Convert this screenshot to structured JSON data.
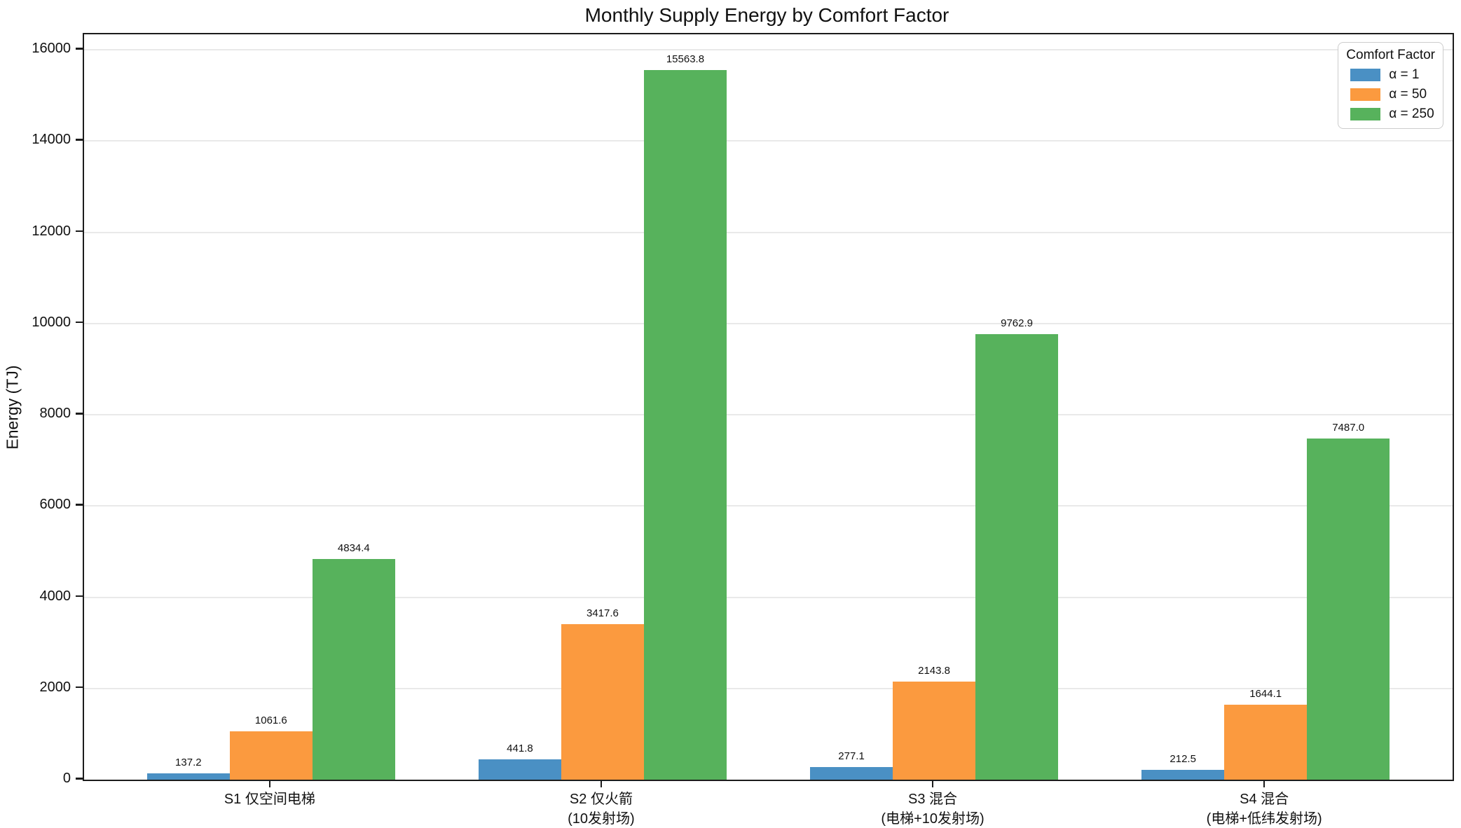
{
  "title": "Monthly Supply Energy by Comfort Factor",
  "ylabel": "Energy (TJ)",
  "legend": {
    "title": "Comfort Factor",
    "entries": [
      {
        "label": "α = 1",
        "color": "#4A90C4"
      },
      {
        "label": "α = 50",
        "color": "#FB9A3F"
      },
      {
        "label": "α = 250",
        "color": "#57B25C"
      }
    ]
  },
  "chart_data": {
    "type": "bar",
    "title": "Monthly Supply Energy by Comfort Factor",
    "xlabel": "",
    "ylabel": "Energy (TJ)",
    "categories": [
      "S1 仅空间电梯",
      "S2 仅火箭\n(10发射场)",
      "S3 混合\n(电梯+10发射场)",
      "S4 混合\n(电梯+低纬发射场)"
    ],
    "category_lines": [
      [
        "S1 仅空间电梯"
      ],
      [
        "S2 仅火箭",
        "(10发射场)"
      ],
      [
        "S3 混合",
        "(电梯+10发射场)"
      ],
      [
        "S4 混合",
        "(电梯+低纬发射场)"
      ]
    ],
    "series": [
      {
        "name": "α = 1",
        "color": "#4A90C4",
        "values": [
          137.2,
          441.8,
          277.1,
          212.5
        ]
      },
      {
        "name": "α = 50",
        "color": "#FB9A3F",
        "values": [
          1061.6,
          3417.6,
          2143.8,
          1644.1
        ]
      },
      {
        "name": "α = 250",
        "color": "#57B25C",
        "values": [
          4834.4,
          15563.8,
          9762.9,
          7487.0
        ]
      }
    ],
    "bar_value_labels": [
      [
        "137.2",
        "441.8",
        "277.1",
        "212.5"
      ],
      [
        "1061.6",
        "3417.6",
        "2143.8",
        "1644.1"
      ],
      [
        "4834.4",
        "15563.8",
        "9762.9",
        "7487.0"
      ]
    ],
    "yticks": [
      0,
      2000,
      4000,
      6000,
      8000,
      10000,
      12000,
      14000,
      16000
    ],
    "ylim": [
      0,
      16342
    ],
    "grid": true,
    "legend_title": "Comfort Factor",
    "legend_position": "upper right"
  },
  "colors": {
    "spine": "#1c1c1c",
    "gridline": "#e9e9e9",
    "background": "#ffffff",
    "text": "#111111"
  }
}
